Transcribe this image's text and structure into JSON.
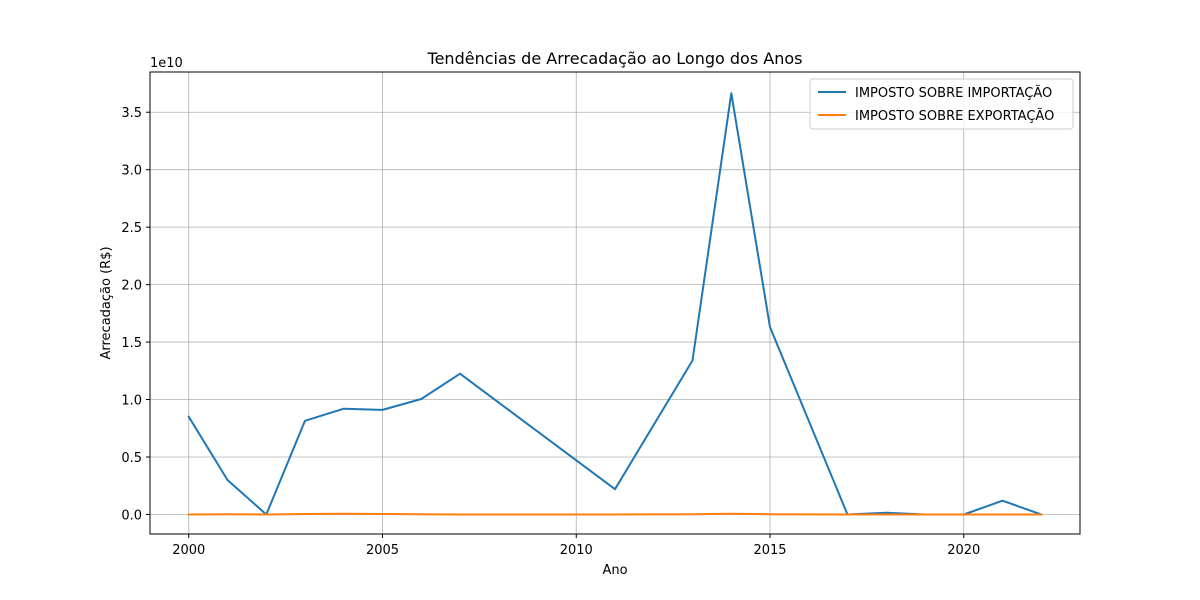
{
  "chart_data": {
    "type": "line",
    "title": "Tendências de Arrecadação ao Longo dos Anos",
    "xlabel": "Ano",
    "ylabel": "Arrecadação (R$)",
    "y_offset_label": "1e10",
    "xlim": [
      1999,
      2023
    ],
    "ylim": [
      -0.17,
      3.85
    ],
    "y_unit_scale": 10000000000,
    "x_ticks": [
      2000,
      2005,
      2010,
      2015,
      2020
    ],
    "x_tick_labels": [
      "2000",
      "2005",
      "2010",
      "2015",
      "2020"
    ],
    "y_ticks": [
      0,
      0.5,
      1.0,
      1.5,
      2.0,
      2.5,
      3.0,
      3.5
    ],
    "y_tick_labels": [
      "0.0",
      "0.5",
      "1.0",
      "1.5",
      "2.0",
      "2.5",
      "3.0",
      "3.5"
    ],
    "grid": true,
    "legend_position": "top-right",
    "x": [
      2000,
      2001,
      2002,
      2003,
      2004,
      2005,
      2006,
      2007,
      2011,
      2013,
      2014,
      2015,
      2017,
      2018,
      2019,
      2020,
      2021,
      2022
    ],
    "series": [
      {
        "name": "IMPOSTO SOBRE IMPORTAÇÃO",
        "color": "#1f77b4",
        "values": [
          0.85,
          0.3,
          0.0,
          0.815,
          0.92,
          0.91,
          1.005,
          1.225,
          0.22,
          1.34,
          3.665,
          1.63,
          0.0,
          0.015,
          0.0,
          0.0,
          0.12,
          0.0
        ]
      },
      {
        "name": "IMPOSTO SOBRE EXPORTAÇÃO",
        "color": "#ff7f0e",
        "values": [
          0.0,
          0.002,
          0.0,
          0.004,
          0.006,
          0.004,
          0.002,
          0.0,
          0.0,
          0.002,
          0.006,
          0.002,
          0.0,
          0.0,
          0.0,
          0.0,
          0.0,
          0.0
        ]
      }
    ]
  }
}
